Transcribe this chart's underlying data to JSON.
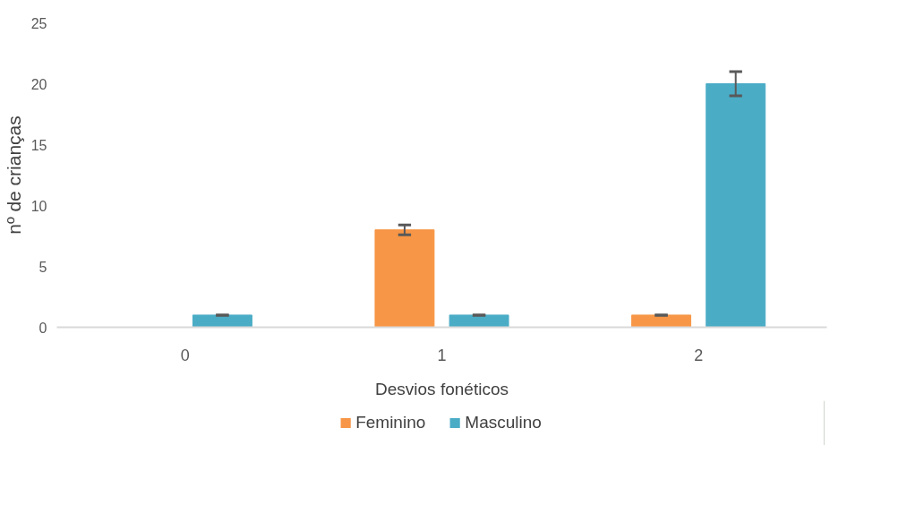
{
  "chart_data": {
    "type": "bar",
    "xlabel": "Desvios fonéticos",
    "ylabel": "nº de crianças",
    "categories": [
      "0",
      "1",
      "2"
    ],
    "series": [
      {
        "name": "Feminino",
        "color": "#f79646",
        "values": [
          0,
          8,
          1
        ],
        "errors": [
          null,
          0.4,
          0
        ]
      },
      {
        "name": "Masculino",
        "color": "#4bacc6",
        "values": [
          1,
          1,
          20
        ],
        "errors": [
          0,
          0,
          1
        ]
      }
    ],
    "ylim": [
      0,
      25
    ],
    "yticks": [
      0,
      5,
      10,
      15,
      20,
      25
    ],
    "grid": false,
    "legend": "bottom"
  }
}
